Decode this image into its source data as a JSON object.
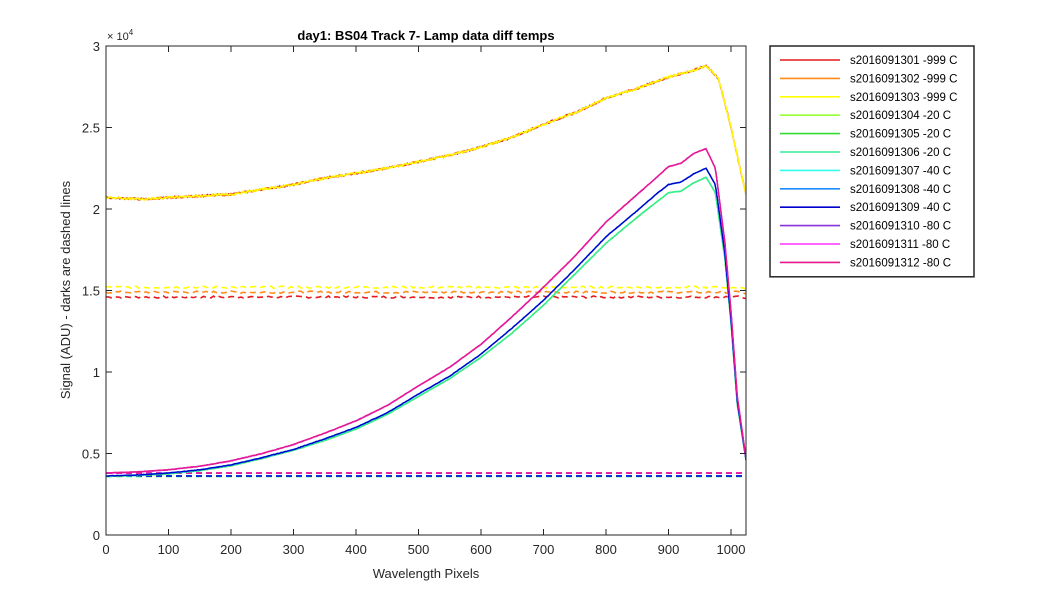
{
  "chart_data": {
    "type": "line",
    "title": "day1: BS04  Track 7- Lamp data diff temps",
    "xlabel": "Wavelength Pixels",
    "ylabel": "Signal (ADU) - darks are dashed lines",
    "xlim": [
      0,
      1024
    ],
    "ylim": [
      0,
      30000
    ],
    "y_exponent_label": "× 10",
    "y_exponent_power": "4",
    "x_ticks": [
      0,
      100,
      200,
      300,
      400,
      500,
      600,
      700,
      800,
      900,
      1000
    ],
    "x_tick_labels": [
      "0",
      "100",
      "200",
      "300",
      "400",
      "500",
      "600",
      "700",
      "800",
      "900",
      "1000"
    ],
    "y_ticks": [
      0,
      5000,
      10000,
      15000,
      20000,
      25000,
      30000
    ],
    "y_tick_labels": [
      "0",
      "0.5",
      "1",
      "1.5",
      "2",
      "2.5",
      "3"
    ],
    "grid": false,
    "legend_position": "outside-right",
    "series": [
      {
        "name": "s2016091301 -999 C",
        "color": "#e41a1c",
        "signal_profile": "warm",
        "dark_level": 14600
      },
      {
        "name": "s2016091302 -999 C",
        "color": "#ff8c1a",
        "signal_profile": "warm",
        "dark_level": 14900
      },
      {
        "name": "s2016091303 -999 C",
        "color": "#ffff00",
        "signal_profile": "warm",
        "dark_level": 15200
      },
      {
        "name": "s2016091304 -20 C",
        "color": "#99ff33",
        "signal_profile": "cool_low",
        "dark_level": 3600
      },
      {
        "name": "s2016091305 -20 C",
        "color": "#33dd33",
        "signal_profile": "cool_low",
        "dark_level": 3600
      },
      {
        "name": "s2016091306 -20 C",
        "color": "#33ee99",
        "signal_profile": "cool_low",
        "dark_level": 3600
      },
      {
        "name": "s2016091307 -40 C",
        "color": "#33ffee",
        "signal_profile": "cool_mid",
        "dark_level": 3620
      },
      {
        "name": "s2016091308 -40 C",
        "color": "#1a8cff",
        "signal_profile": "cool_mid",
        "dark_level": 3620
      },
      {
        "name": "s2016091309 -40 C",
        "color": "#0000cc",
        "signal_profile": "cool_mid",
        "dark_level": 3620
      },
      {
        "name": "s2016091310 -80 C",
        "color": "#8833dd",
        "signal_profile": "cool_high",
        "dark_level": 3800
      },
      {
        "name": "s2016091311 -80 C",
        "color": "#ff33ff",
        "signal_profile": "cool_high",
        "dark_level": 3800
      },
      {
        "name": "s2016091312 -80 C",
        "color": "#e6198c",
        "signal_profile": "cool_high",
        "dark_level": 3800
      }
    ],
    "profiles": {
      "warm": {
        "x": [
          0,
          60,
          100,
          150,
          200,
          250,
          300,
          350,
          400,
          450,
          500,
          550,
          600,
          650,
          700,
          750,
          800,
          850,
          900,
          940,
          960,
          980,
          1000,
          1024
        ],
        "y": [
          20700,
          20600,
          20700,
          20800,
          20900,
          21200,
          21500,
          21900,
          22200,
          22500,
          22900,
          23300,
          23800,
          24400,
          25200,
          25900,
          26800,
          27400,
          28100,
          28500,
          28800,
          28000,
          25000,
          20900
        ]
      },
      "cool_low": {
        "x": [
          0,
          50,
          100,
          150,
          200,
          250,
          300,
          350,
          400,
          450,
          500,
          550,
          600,
          650,
          700,
          750,
          800,
          850,
          880,
          900,
          920,
          940,
          960,
          975,
          990,
          1000,
          1010,
          1024
        ],
        "y": [
          3600,
          3650,
          3750,
          3950,
          4250,
          4700,
          5200,
          5800,
          6500,
          7400,
          8500,
          9600,
          10900,
          12400,
          14100,
          16000,
          17900,
          19500,
          20400,
          21000,
          21100,
          21600,
          21950,
          21000,
          17000,
          13000,
          8000,
          4600
        ]
      },
      "cool_mid": {
        "x": [
          0,
          50,
          100,
          150,
          200,
          250,
          300,
          350,
          400,
          450,
          500,
          550,
          600,
          650,
          700,
          750,
          800,
          850,
          880,
          900,
          920,
          940,
          960,
          975,
          990,
          1000,
          1010,
          1024
        ],
        "y": [
          3620,
          3680,
          3800,
          4000,
          4300,
          4750,
          5250,
          5900,
          6600,
          7500,
          8650,
          9750,
          11100,
          12700,
          14400,
          16300,
          18300,
          19900,
          20900,
          21500,
          21650,
          22150,
          22500,
          21500,
          17300,
          13200,
          8200,
          4600
        ]
      },
      "cool_high": {
        "x": [
          0,
          50,
          100,
          150,
          200,
          250,
          300,
          350,
          400,
          450,
          500,
          550,
          600,
          650,
          700,
          750,
          800,
          850,
          880,
          900,
          920,
          940,
          960,
          975,
          990,
          1000,
          1010,
          1024
        ],
        "y": [
          3800,
          3870,
          4000,
          4220,
          4550,
          5000,
          5550,
          6250,
          7000,
          7950,
          9150,
          10300,
          11700,
          13400,
          15200,
          17100,
          19200,
          20900,
          21900,
          22600,
          22800,
          23400,
          23700,
          22500,
          18000,
          13700,
          8500,
          4700
        ]
      }
    }
  }
}
